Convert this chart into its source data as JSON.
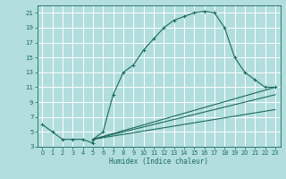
{
  "xlabel": "Humidex (Indice chaleur)",
  "bg_color": "#b2dede",
  "grid_color": "#ffffff",
  "line_color": "#1a6b5a",
  "xlim": [
    -0.5,
    23.5
  ],
  "ylim": [
    3,
    22
  ],
  "xticks": [
    0,
    1,
    2,
    3,
    4,
    5,
    6,
    7,
    8,
    9,
    10,
    11,
    12,
    13,
    14,
    15,
    16,
    17,
    18,
    19,
    20,
    21,
    22,
    23
  ],
  "yticks": [
    3,
    5,
    7,
    9,
    11,
    13,
    15,
    17,
    19,
    21
  ],
  "series": [
    {
      "x": [
        0,
        1,
        2,
        3,
        4,
        5,
        5,
        6,
        7,
        8,
        9,
        10,
        11,
        12,
        13,
        14,
        15,
        16,
        17,
        18,
        19,
        20,
        21,
        22,
        23
      ],
      "y": [
        6,
        5,
        4,
        4,
        4,
        3.5,
        4,
        5,
        10,
        13,
        14,
        16,
        17.5,
        19,
        20,
        20.5,
        21,
        21.2,
        21,
        19,
        15,
        13,
        12,
        11,
        11
      ],
      "marker": true
    },
    {
      "x": [
        5,
        23
      ],
      "y": [
        4,
        11
      ],
      "marker": false
    },
    {
      "x": [
        5,
        23
      ],
      "y": [
        4,
        10
      ],
      "marker": false
    },
    {
      "x": [
        5,
        23
      ],
      "y": [
        4,
        8
      ],
      "marker": false
    }
  ]
}
